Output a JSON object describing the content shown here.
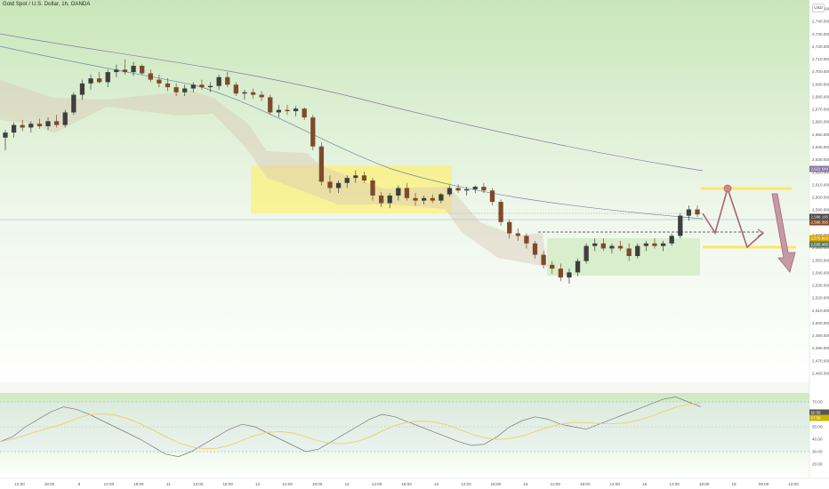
{
  "header": {
    "title": "Gold Spot / U.S. Dollar, 1h, OANDA",
    "currency": "USD"
  },
  "colors": {
    "up_candle": "#3e3e3e",
    "down_candle": "#7d4b2c",
    "yellow_zone": "#fff07a",
    "target_line": "#ffe86b",
    "arrow": "#a86474",
    "rsi_line": "#7a7a7a",
    "rsi_ma": "#e6d36a",
    "ema_1": "#6c8a9c",
    "ema_2": "#8a78a0"
  },
  "price_axis": {
    "labels": [
      "2,750.000",
      "2,740.000",
      "2,730.000",
      "2,720.000",
      "2,710.000",
      "2,700.000",
      "2,690.000",
      "2,680.000",
      "2,670.000",
      "2,660.000",
      "2,650.000",
      "2,640.000",
      "2,630.000",
      "2,620.000",
      "2,610.000",
      "2,600.000",
      "2,590.000",
      "2,580.000",
      "2,570.000",
      "2,560.000",
      "2,550.000",
      "2,540.000",
      "2,530.000",
      "2,520.000",
      "2,510.000",
      "2,500.000",
      "2,490.000",
      "2,480.000",
      "2,470.000",
      "2,460.000"
    ],
    "tags": [
      {
        "text": "2,622.540",
        "color": "#8a78a0"
      },
      {
        "text": "2,588.195",
        "color": "#444444"
      },
      {
        "text": "2,588.395",
        "color": "#7d4b2c"
      },
      {
        "text": "2,570.825",
        "color": "#d9a400"
      },
      {
        "text": "2,565.485",
        "color": "#5a7a5a"
      }
    ]
  },
  "rsi_axis": {
    "labels": [
      "70.00",
      "60.00",
      "50.00",
      "40.00",
      "30.00",
      "20.00"
    ],
    "tags": [
      {
        "text": "60.56",
        "color": "#555555"
      },
      {
        "text": "57.58",
        "color": "#c9b400"
      }
    ]
  },
  "time_axis": {
    "labels": [
      "12:00",
      "18:00",
      "8",
      "12:00",
      "18:00",
      "11",
      "12:00",
      "18:00",
      "12",
      "12:00",
      "18:00",
      "13",
      "12:00",
      "18:00",
      "14",
      "12:00",
      "18:00",
      "15",
      "12:00",
      "18:00",
      "12:00",
      "18",
      "12:00",
      "18:00",
      "19",
      "06:00",
      "12:00"
    ]
  },
  "chart_data": {
    "type": "candlestick",
    "title": "Gold Spot / U.S. Dollar, 1h, OANDA",
    "ylim": [
      2460,
      2755
    ],
    "ohlc": [
      [
        2650,
        2656,
        2640,
        2654
      ],
      [
        2654,
        2662,
        2650,
        2660
      ],
      [
        2660,
        2664,
        2655,
        2658
      ],
      [
        2658,
        2663,
        2654,
        2661
      ],
      [
        2661,
        2665,
        2657,
        2659
      ],
      [
        2659,
        2666,
        2656,
        2663
      ],
      [
        2663,
        2668,
        2658,
        2660
      ],
      [
        2660,
        2672,
        2658,
        2670
      ],
      [
        2670,
        2686,
        2668,
        2684
      ],
      [
        2684,
        2696,
        2680,
        2693
      ],
      [
        2693,
        2700,
        2688,
        2697
      ],
      [
        2697,
        2702,
        2693,
        2694
      ],
      [
        2694,
        2704,
        2690,
        2702
      ],
      [
        2702,
        2708,
        2698,
        2704
      ],
      [
        2704,
        2712,
        2700,
        2702
      ],
      [
        2702,
        2710,
        2699,
        2707
      ],
      [
        2707,
        2708,
        2700,
        2701
      ],
      [
        2701,
        2704,
        2694,
        2696
      ],
      [
        2696,
        2700,
        2690,
        2693
      ],
      [
        2693,
        2697,
        2687,
        2690
      ],
      [
        2690,
        2693,
        2683,
        2686
      ],
      [
        2686,
        2692,
        2683,
        2689
      ],
      [
        2689,
        2694,
        2686,
        2692
      ],
      [
        2692,
        2696,
        2688,
        2690
      ],
      [
        2690,
        2694,
        2686,
        2691
      ],
      [
        2691,
        2700,
        2688,
        2698
      ],
      [
        2698,
        2702,
        2690,
        2692
      ],
      [
        2692,
        2694,
        2683,
        2685
      ],
      [
        2685,
        2688,
        2680,
        2686
      ],
      [
        2686,
        2689,
        2681,
        2684
      ],
      [
        2684,
        2687,
        2679,
        2682
      ],
      [
        2682,
        2684,
        2668,
        2670
      ],
      [
        2670,
        2676,
        2666,
        2672
      ],
      [
        2672,
        2676,
        2668,
        2671
      ],
      [
        2671,
        2675,
        2667,
        2673
      ],
      [
        2673,
        2674,
        2664,
        2666
      ],
      [
        2666,
        2668,
        2640,
        2643
      ],
      [
        2643,
        2646,
        2612,
        2615
      ],
      [
        2615,
        2620,
        2606,
        2610
      ],
      [
        2610,
        2616,
        2606,
        2614
      ],
      [
        2614,
        2620,
        2610,
        2618
      ],
      [
        2618,
        2624,
        2614,
        2620
      ],
      [
        2620,
        2623,
        2614,
        2616
      ],
      [
        2616,
        2618,
        2600,
        2604
      ],
      [
        2604,
        2607,
        2595,
        2598
      ],
      [
        2598,
        2606,
        2594,
        2604
      ],
      [
        2604,
        2612,
        2600,
        2610
      ],
      [
        2610,
        2614,
        2600,
        2602
      ],
      [
        2602,
        2606,
        2596,
        2600
      ],
      [
        2600,
        2604,
        2597,
        2602
      ],
      [
        2602,
        2605,
        2598,
        2600
      ],
      [
        2600,
        2606,
        2598,
        2605
      ],
      [
        2605,
        2612,
        2603,
        2610
      ],
      [
        2610,
        2613,
        2606,
        2608
      ],
      [
        2608,
        2611,
        2604,
        2609
      ],
      [
        2609,
        2612,
        2606,
        2611
      ],
      [
        2611,
        2614,
        2606,
        2608
      ],
      [
        2608,
        2610,
        2596,
        2599
      ],
      [
        2599,
        2601,
        2580,
        2583
      ],
      [
        2583,
        2585,
        2570,
        2574
      ],
      [
        2574,
        2578,
        2568,
        2572
      ],
      [
        2572,
        2574,
        2562,
        2566
      ],
      [
        2566,
        2568,
        2554,
        2557
      ],
      [
        2557,
        2560,
        2546,
        2549
      ],
      [
        2549,
        2552,
        2542,
        2546
      ],
      [
        2546,
        2550,
        2536,
        2539
      ],
      [
        2539,
        2546,
        2534,
        2543
      ],
      [
        2543,
        2554,
        2540,
        2552
      ],
      [
        2552,
        2566,
        2550,
        2564
      ],
      [
        2564,
        2570,
        2560,
        2566
      ],
      [
        2566,
        2570,
        2560,
        2562
      ],
      [
        2562,
        2566,
        2558,
        2564
      ],
      [
        2564,
        2568,
        2560,
        2562
      ],
      [
        2562,
        2566,
        2552,
        2556
      ],
      [
        2556,
        2566,
        2554,
        2564
      ],
      [
        2564,
        2568,
        2560,
        2566
      ],
      [
        2566,
        2570,
        2562,
        2564
      ],
      [
        2564,
        2568,
        2560,
        2566
      ],
      [
        2566,
        2574,
        2564,
        2572
      ],
      [
        2572,
        2590,
        2570,
        2588
      ],
      [
        2588,
        2596,
        2584,
        2593
      ],
      [
        2593,
        2596,
        2587,
        2589
      ]
    ],
    "rsi": [
      38,
      42,
      50,
      56,
      62,
      66,
      64,
      60,
      55,
      50,
      45,
      40,
      34,
      28,
      26,
      30,
      36,
      42,
      48,
      52,
      50,
      45,
      40,
      35,
      30,
      32,
      38,
      44,
      50,
      56,
      60,
      58,
      54,
      50,
      46,
      42,
      38,
      35,
      36,
      42,
      50,
      55,
      58,
      56,
      52,
      50,
      48,
      52,
      56,
      60,
      64,
      68,
      72,
      74,
      70,
      66
    ],
    "annotations": {
      "target_high": 2606,
      "target_low": 2570,
      "projection_end": 2555
    }
  }
}
